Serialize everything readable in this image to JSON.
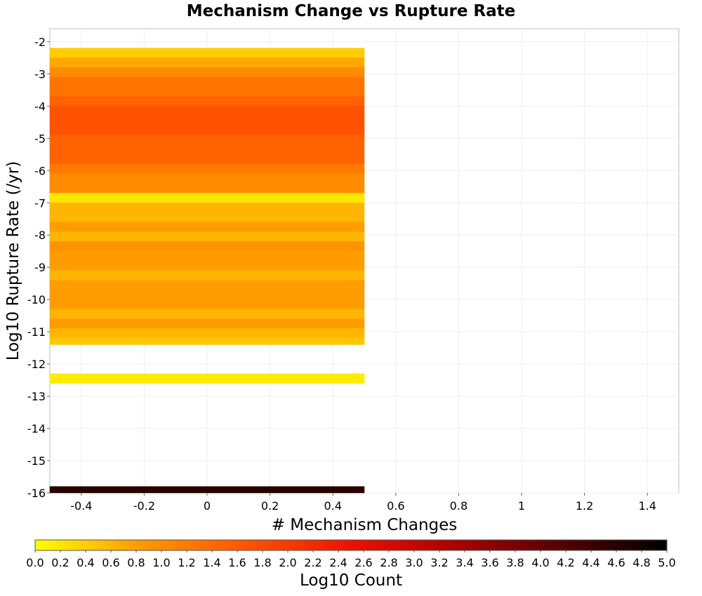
{
  "chart_data": {
    "type": "heatmap",
    "title": "Mechanism Change vs Rupture Rate",
    "xlabel": "# Mechanism Changes",
    "ylabel": "Log10 Rupture Rate (/yr)",
    "xlim": [
      -0.5,
      1.5
    ],
    "ylim": [
      -16.0,
      -1.6
    ],
    "x_ticks": [
      "-0.4",
      "-0.2",
      "0",
      "0.2",
      "0.4",
      "0.6",
      "0.8",
      "1",
      "1.2",
      "1.4"
    ],
    "x_tick_values": [
      -0.4,
      -0.2,
      0,
      0.2,
      0.4,
      0.6,
      0.8,
      1.0,
      1.2,
      1.4
    ],
    "y_ticks": [
      "-2",
      "-3",
      "-4",
      "-5",
      "-6",
      "-7",
      "-8",
      "-9",
      "-10",
      "-11",
      "-12",
      "-13",
      "-14",
      "-15",
      "-16"
    ],
    "y_tick_values": [
      -2,
      -3,
      -4,
      -5,
      -6,
      -7,
      -8,
      -9,
      -10,
      -11,
      -12,
      -13,
      -14,
      -15,
      -16
    ],
    "grid": true,
    "cells": [
      {
        "x0": -0.5,
        "x1": 0.5,
        "y0": -2.5,
        "y1": -2.2,
        "value": 0.4
      },
      {
        "x0": -0.5,
        "x1": 0.5,
        "y0": -2.8,
        "y1": -2.5,
        "value": 0.7
      },
      {
        "x0": -0.5,
        "x1": 0.5,
        "y0": -3.1,
        "y1": -2.8,
        "value": 1.0
      },
      {
        "x0": -0.5,
        "x1": 0.5,
        "y0": -3.7,
        "y1": -3.1,
        "value": 1.3
      },
      {
        "x0": -0.5,
        "x1": 0.5,
        "y0": -4.0,
        "y1": -3.7,
        "value": 1.5
      },
      {
        "x0": -0.5,
        "x1": 0.5,
        "y0": -4.9,
        "y1": -4.0,
        "value": 1.7
      },
      {
        "x0": -0.5,
        "x1": 0.5,
        "y0": -5.8,
        "y1": -4.9,
        "value": 1.5
      },
      {
        "x0": -0.5,
        "x1": 0.5,
        "y0": -6.1,
        "y1": -5.8,
        "value": 1.2
      },
      {
        "x0": -0.5,
        "x1": 0.5,
        "y0": -6.7,
        "y1": -6.1,
        "value": 1.0
      },
      {
        "x0": -0.5,
        "x1": 0.5,
        "y0": -7.0,
        "y1": -6.7,
        "value": 0.2
      },
      {
        "x0": -0.5,
        "x1": 0.5,
        "y0": -7.6,
        "y1": -7.0,
        "value": 0.6
      },
      {
        "x0": -0.5,
        "x1": 0.5,
        "y0": -7.9,
        "y1": -7.6,
        "value": 0.8
      },
      {
        "x0": -0.5,
        "x1": 0.5,
        "y0": -8.2,
        "y1": -7.9,
        "value": 0.6
      },
      {
        "x0": -0.5,
        "x1": 0.5,
        "y0": -8.5,
        "y1": -8.2,
        "value": 0.9
      },
      {
        "x0": -0.5,
        "x1": 0.5,
        "y0": -9.1,
        "y1": -8.5,
        "value": 0.8
      },
      {
        "x0": -0.5,
        "x1": 0.5,
        "y0": -9.4,
        "y1": -9.1,
        "value": 0.6
      },
      {
        "x0": -0.5,
        "x1": 0.5,
        "y0": -10.3,
        "y1": -9.4,
        "value": 0.8
      },
      {
        "x0": -0.5,
        "x1": 0.5,
        "y0": -10.6,
        "y1": -10.3,
        "value": 0.6
      },
      {
        "x0": -0.5,
        "x1": 0.5,
        "y0": -10.9,
        "y1": -10.6,
        "value": 0.8
      },
      {
        "x0": -0.5,
        "x1": 0.5,
        "y0": -11.2,
        "y1": -10.9,
        "value": 0.6
      },
      {
        "x0": -0.5,
        "x1": 0.5,
        "y0": -11.4,
        "y1": -11.2,
        "value": 0.45
      },
      {
        "x0": -0.5,
        "x1": 0.5,
        "y0": -12.6,
        "y1": -12.3,
        "value": 0.15
      },
      {
        "x0": -0.5,
        "x1": 0.5,
        "y0": -16.0,
        "y1": -15.8,
        "value": 4.6
      }
    ],
    "colorbar": {
      "label": "Log10 Count",
      "range": [
        0.0,
        5.0
      ],
      "tick_labels": [
        "0.0",
        "0.2",
        "0.4",
        "0.6",
        "0.8",
        "1.0",
        "1.2",
        "1.4",
        "1.6",
        "1.8",
        "2.0",
        "2.2",
        "2.4",
        "2.6",
        "2.8",
        "3.0",
        "3.2",
        "3.4",
        "3.6",
        "3.8",
        "4.0",
        "4.2",
        "4.4",
        "4.6",
        "4.8",
        "5.0"
      ],
      "tick_values": [
        0.0,
        0.2,
        0.4,
        0.6,
        0.8,
        1.0,
        1.2,
        1.4,
        1.6,
        1.8,
        2.0,
        2.2,
        2.4,
        2.6,
        2.8,
        3.0,
        3.2,
        3.4,
        3.6,
        3.8,
        4.0,
        4.2,
        4.4,
        4.6,
        4.8,
        5.0
      ],
      "colors": [
        "#ffff00",
        "#ff9900",
        "#ff5500",
        "#ee1100",
        "#aa0000",
        "#550000",
        "#000000"
      ]
    }
  }
}
